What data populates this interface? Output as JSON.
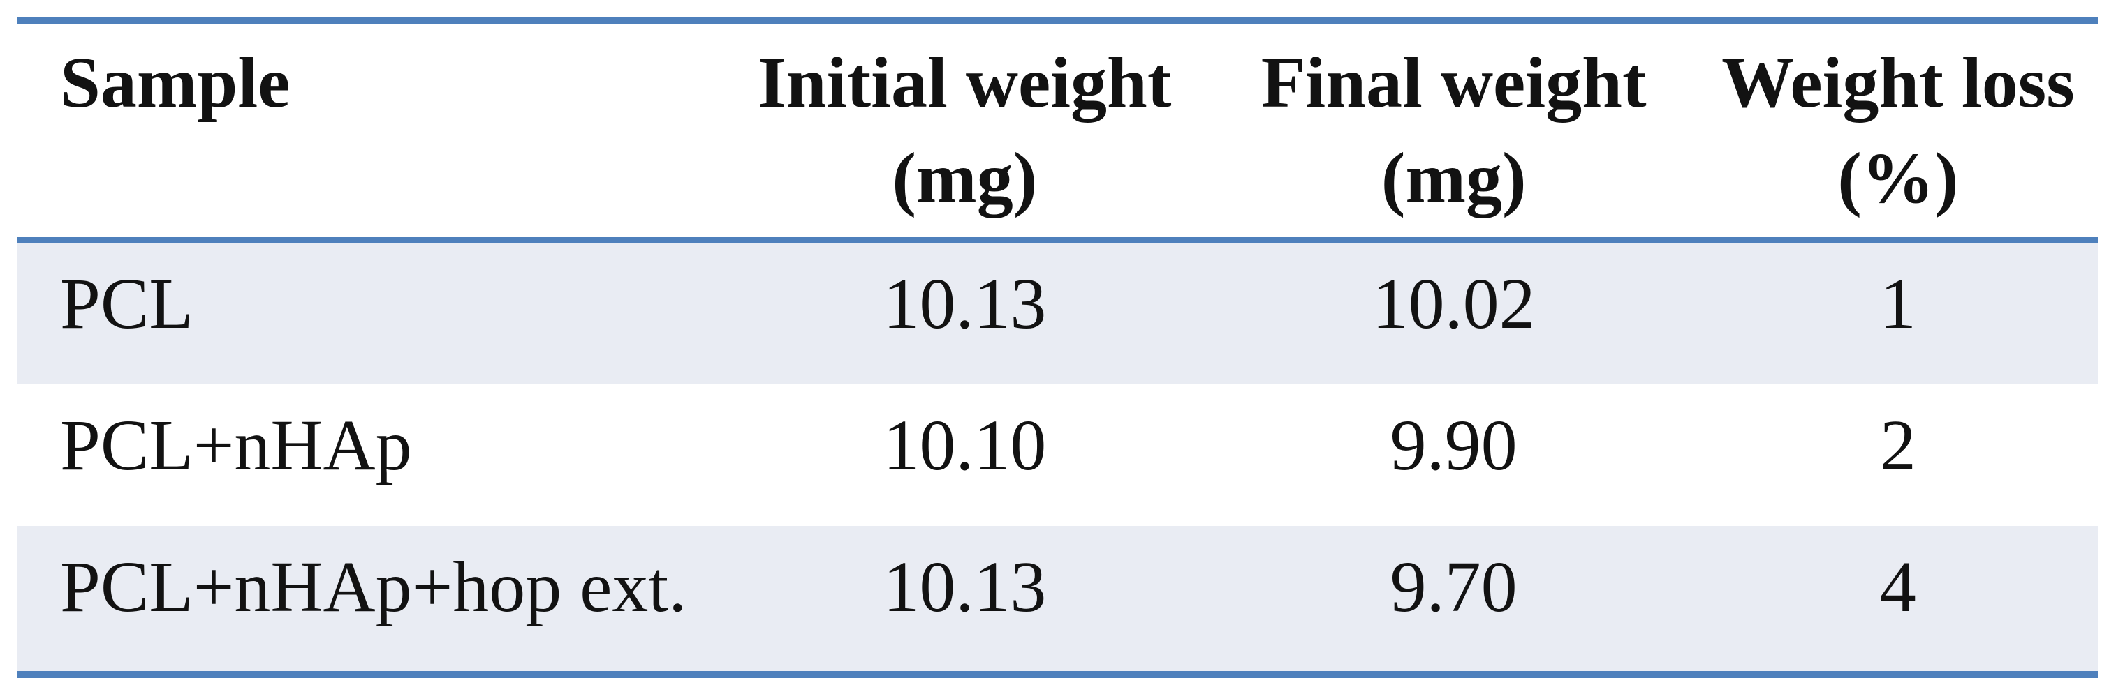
{
  "colors": {
    "border_blue": "#4e80bc",
    "band_shade": "#e9ecf3",
    "background": "#ffffff",
    "text": "#121212"
  },
  "table": {
    "headers": {
      "sample": {
        "line1": "Sample",
        "line2": ""
      },
      "initial": {
        "line1": "Initial weight",
        "line2": "(mg)"
      },
      "final": {
        "line1": "Final weight",
        "line2": "(mg)"
      },
      "loss": {
        "line1": "Weight loss",
        "line2": "(%)"
      }
    },
    "rows": [
      {
        "sample": "PCL",
        "initial": "10.13",
        "final": "10.02",
        "loss": "1"
      },
      {
        "sample": "PCL+nHAp",
        "initial": "10.10",
        "final": "9.90",
        "loss": "2"
      },
      {
        "sample": "PCL+nHAp+hop ext.",
        "initial": "10.13",
        "final": "9.70",
        "loss": "4"
      }
    ]
  },
  "chart_data": {
    "type": "table",
    "columns": [
      "Sample",
      "Initial weight (mg)",
      "Final weight (mg)",
      "Weight loss (%)"
    ],
    "rows": [
      [
        "PCL",
        10.13,
        10.02,
        1
      ],
      [
        "PCL+nHAp",
        10.1,
        9.9,
        2
      ],
      [
        "PCL+nHAp+hop ext.",
        10.13,
        9.7,
        4
      ]
    ]
  }
}
